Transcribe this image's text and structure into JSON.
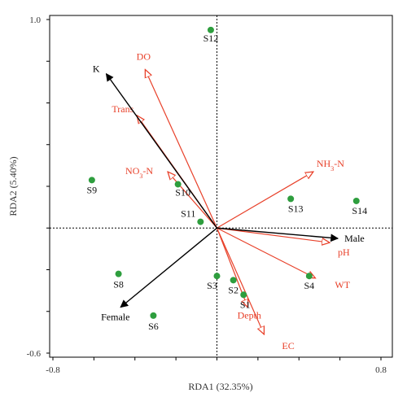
{
  "chart_data": {
    "type": "scatter",
    "subtype": "rda-biplot",
    "xlabel": "RDA1 (32.35%)",
    "ylabel": "RDA2 (5.40%)",
    "xlim": [
      -0.8,
      0.8
    ],
    "ylim": [
      -0.6,
      1.0
    ],
    "x_tick_labels": [
      "-0.8",
      "0.8"
    ],
    "y_tick_labels": [
      "1.0",
      "-0.6"
    ],
    "reference_lines": {
      "x": 0,
      "y": 0,
      "style": "dotted"
    },
    "grid": false,
    "colors": {
      "sites": "#2e9e3e",
      "env": "#e8412a",
      "species": "#000000",
      "axis_text": "#333333"
    },
    "sites": [
      {
        "label": "S12",
        "x": -0.03,
        "y": 0.95
      },
      {
        "label": "S9",
        "x": -0.61,
        "y": 0.23
      },
      {
        "label": "S10",
        "x": -0.19,
        "y": 0.21
      },
      {
        "label": "S11",
        "x": -0.08,
        "y": 0.03
      },
      {
        "label": "S13",
        "x": 0.36,
        "y": 0.14
      },
      {
        "label": "S14",
        "x": 0.68,
        "y": 0.13
      },
      {
        "label": "S8",
        "x": -0.48,
        "y": -0.22
      },
      {
        "label": "S3",
        "x": 0.0,
        "y": -0.23
      },
      {
        "label": "S2",
        "x": 0.08,
        "y": -0.25
      },
      {
        "label": "S1",
        "x": 0.13,
        "y": -0.32
      },
      {
        "label": "S4",
        "x": 0.45,
        "y": -0.23
      },
      {
        "label": "S6",
        "x": -0.31,
        "y": -0.42
      }
    ],
    "env_vectors": [
      {
        "label": "DO",
        "x": -0.35,
        "y": 0.76
      },
      {
        "label": "Trans",
        "x": -0.39,
        "y": 0.54
      },
      {
        "label": "NO",
        "sub": "3",
        "suffix": "-N",
        "x": -0.24,
        "y": 0.27
      },
      {
        "label": "NH",
        "sub": "3",
        "suffix": "-N",
        "x": 0.47,
        "y": 0.27
      },
      {
        "label": "pH",
        "x": 0.55,
        "y": -0.07
      },
      {
        "label": "WT",
        "x": 0.48,
        "y": -0.24
      },
      {
        "label": "Depth",
        "x": 0.15,
        "y": -0.38
      },
      {
        "label": "EC",
        "x": 0.23,
        "y": -0.51
      }
    ],
    "species_vectors": [
      {
        "label": "K",
        "x": -0.54,
        "y": 0.74
      },
      {
        "label": "Male",
        "x": 0.59,
        "y": -0.05
      },
      {
        "label": "Female",
        "x": -0.47,
        "y": -0.38
      }
    ]
  }
}
